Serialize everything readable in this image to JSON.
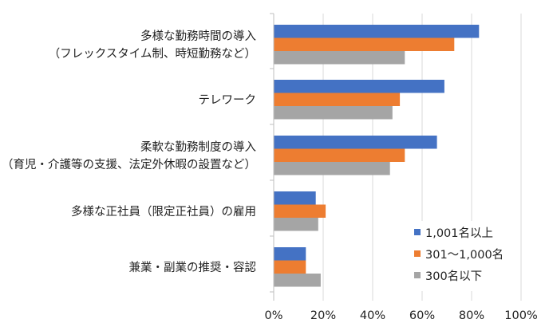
{
  "chart_data": {
    "type": "bar",
    "orientation": "horizontal",
    "categories": [
      [
        "多様な勤務時間の導入",
        "（フレックスタイム制、時短勤務など）"
      ],
      [
        "テレワーク"
      ],
      [
        "柔軟な勤務制度の導入",
        "（育児・介護等の支援、法定外休暇の設置など）"
      ],
      [
        "多様な正社員（限定正社員）の雇用"
      ],
      [
        "兼業・副業の推奨・容認"
      ]
    ],
    "series": [
      {
        "name": "1,001名以上",
        "color": "#4472C4",
        "values": [
          83,
          69,
          66,
          17,
          13
        ]
      },
      {
        "name": "301～1,000名",
        "color": "#ED7D31",
        "values": [
          73,
          51,
          53,
          21,
          13
        ]
      },
      {
        "name": "300名以下",
        "color": "#A5A5A5",
        "values": [
          53,
          48,
          47,
          18,
          19
        ]
      }
    ],
    "xlim": [
      0,
      100
    ],
    "xticks": [
      "0%",
      "20%",
      "40%",
      "60%",
      "80%",
      "100%"
    ],
    "grid": true,
    "legend_position": "bottom-right",
    "title": "",
    "xlabel": "",
    "ylabel": ""
  }
}
